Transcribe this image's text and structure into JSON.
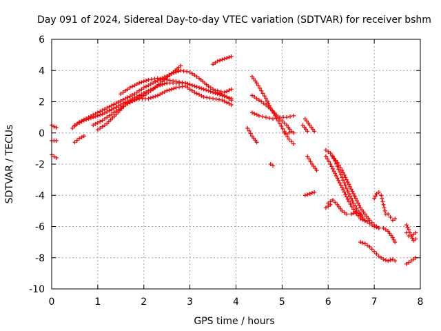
{
  "chart_data": {
    "type": "scatter",
    "title": "Day 091 of 2024, Sidereal Day-to-day VTEC variation (SDTVAR) for receiver bshm",
    "xlabel": "GPS time / hours",
    "ylabel": "SDTVAR / TECUs",
    "xlim": [
      0,
      8
    ],
    "ylim": [
      -10,
      6
    ],
    "xticks": [
      0,
      1,
      2,
      3,
      4,
      5,
      6,
      7,
      8
    ],
    "yticks": [
      -10,
      -8,
      -6,
      -4,
      -2,
      0,
      2,
      4,
      6
    ],
    "grid": true,
    "marker": "+",
    "color": "#ff0000",
    "series": [
      {
        "name": "a0",
        "x": [
          0.0,
          0.05,
          0.1
        ],
        "y": [
          0.5,
          0.4,
          0.35
        ]
      },
      {
        "name": "a1",
        "x": [
          0.0,
          0.05,
          0.1
        ],
        "y": [
          -0.5,
          -0.5,
          -0.5
        ]
      },
      {
        "name": "a2",
        "x": [
          0.0,
          0.05,
          0.1
        ],
        "y": [
          -1.4,
          -1.5,
          -1.6
        ]
      },
      {
        "name": "a3",
        "x": [
          0.5,
          0.6,
          0.7
        ],
        "y": [
          -0.6,
          -0.35,
          -0.2
        ]
      },
      {
        "name": "s1",
        "x": [
          0.45,
          0.6,
          0.8,
          1.0,
          1.2,
          1.4,
          1.6,
          1.8,
          2.0,
          2.2,
          2.4,
          2.6,
          2.8,
          3.0,
          3.2,
          3.4,
          3.6,
          3.8,
          3.9
        ],
        "y": [
          0.3,
          0.7,
          1.0,
          1.3,
          1.6,
          1.9,
          2.2,
          2.5,
          2.9,
          3.2,
          3.5,
          3.8,
          4.0,
          3.9,
          3.5,
          3.0,
          2.6,
          2.3,
          2.1
        ]
      },
      {
        "name": "s2",
        "x": [
          0.5,
          0.7,
          0.9,
          1.1,
          1.3,
          1.5,
          1.7,
          1.9,
          2.1,
          2.3,
          2.5,
          2.7,
          2.9,
          3.1,
          3.3,
          3.5,
          3.7,
          3.9
        ],
        "y": [
          0.5,
          0.8,
          1.0,
          1.2,
          1.5,
          1.8,
          2.1,
          2.4,
          2.7,
          3.0,
          3.2,
          3.2,
          3.2,
          3.0,
          2.8,
          2.6,
          2.4,
          2.2
        ]
      },
      {
        "name": "s3",
        "x": [
          0.9,
          1.1,
          1.3,
          1.5,
          1.7,
          1.9,
          2.1,
          2.3,
          2.5,
          2.7,
          2.9,
          3.1,
          3.3,
          3.5,
          3.7,
          3.9
        ],
        "y": [
          0.5,
          0.8,
          1.2,
          1.6,
          2.0,
          2.2,
          2.2,
          2.4,
          2.7,
          2.9,
          3.0,
          2.6,
          2.3,
          2.2,
          2.1,
          1.8
        ]
      },
      {
        "name": "s4",
        "x": [
          1.0,
          1.2,
          1.4,
          1.6,
          1.8,
          2.0,
          2.2,
          2.4,
          2.6,
          2.8
        ],
        "y": [
          0.2,
          0.6,
          1.2,
          1.8,
          2.1,
          2.4,
          2.8,
          3.3,
          3.8,
          4.3
        ]
      },
      {
        "name": "s5",
        "x": [
          1.5,
          1.7,
          1.9,
          2.1,
          2.3,
          2.5,
          2.7,
          2.9
        ],
        "y": [
          2.5,
          2.9,
          3.2,
          3.4,
          3.5,
          3.4,
          3.3,
          3.2
        ]
      },
      {
        "name": "s6",
        "x": [
          3.5,
          3.6,
          3.7,
          3.8,
          3.9
        ],
        "y": [
          4.4,
          4.6,
          4.7,
          4.8,
          4.9
        ]
      },
      {
        "name": "s7",
        "x": [
          3.6,
          3.75,
          3.9
        ],
        "y": [
          2.7,
          2.6,
          2.8
        ]
      },
      {
        "name": "b1",
        "x": [
          4.35,
          4.45,
          4.55,
          4.65,
          4.75,
          4.85,
          4.95,
          5.05,
          5.15,
          5.25
        ],
        "y": [
          3.6,
          3.2,
          2.7,
          2.2,
          1.6,
          1.1,
          0.6,
          0.1,
          -0.4,
          -0.7
        ]
      },
      {
        "name": "b2",
        "x": [
          4.35,
          4.5,
          4.65,
          4.8,
          4.95,
          5.1,
          5.2
        ],
        "y": [
          2.4,
          2.1,
          1.8,
          1.4,
          0.9,
          0.5,
          0.1
        ]
      },
      {
        "name": "b3",
        "x": [
          4.35,
          4.5,
          4.65,
          4.8,
          4.95,
          5.1,
          5.25
        ],
        "y": [
          1.3,
          1.1,
          1.0,
          0.9,
          1.0,
          1.0,
          1.1
        ]
      },
      {
        "name": "b4",
        "x": [
          4.25,
          4.35,
          4.45
        ],
        "y": [
          0.3,
          -0.2,
          -0.6
        ]
      },
      {
        "name": "b5",
        "x": [
          4.75,
          4.8
        ],
        "y": [
          -2.0,
          -2.1
        ]
      },
      {
        "name": "b6",
        "x": [
          5.05,
          5.15,
          5.25
        ],
        "y": [
          0.0,
          0.0,
          0.0
        ]
      },
      {
        "name": "c1",
        "x": [
          5.5,
          5.6,
          5.7
        ],
        "y": [
          0.9,
          0.5,
          0.1
        ]
      },
      {
        "name": "c2",
        "x": [
          5.45,
          5.55
        ],
        "y": [
          0.5,
          0.1
        ]
      },
      {
        "name": "c3",
        "x": [
          5.5,
          5.6,
          5.7
        ],
        "y": [
          -4.0,
          -3.9,
          -3.8
        ]
      },
      {
        "name": "c4",
        "x": [
          5.55,
          5.65,
          5.75
        ],
        "y": [
          -1.5,
          -2.0,
          -2.4
        ]
      },
      {
        "name": "d1",
        "x": [
          5.95,
          6.05,
          6.15,
          6.25,
          6.35,
          6.45,
          6.55,
          6.65,
          6.75
        ],
        "y": [
          -1.1,
          -1.3,
          -1.8,
          -2.5,
          -3.2,
          -3.9,
          -4.5,
          -5.0,
          -5.4
        ]
      },
      {
        "name": "d2",
        "x": [
          5.95,
          6.05,
          6.15,
          6.25,
          6.35,
          6.45,
          6.55,
          6.65,
          6.8
        ],
        "y": [
          -1.5,
          -2.0,
          -2.6,
          -3.2,
          -3.8,
          -4.4,
          -4.9,
          -5.3,
          -5.6
        ]
      },
      {
        "name": "d3",
        "x": [
          6.1,
          6.2,
          6.3,
          6.4,
          6.5,
          6.6,
          6.7,
          6.8,
          6.9,
          7.0,
          7.1,
          7.2,
          7.3,
          7.4,
          7.45
        ],
        "y": [
          -1.5,
          -1.9,
          -2.4,
          -3.0,
          -3.6,
          -4.2,
          -4.8,
          -5.2,
          -5.6,
          -5.9,
          -6.1,
          -6.1,
          -6.3,
          -6.7,
          -7.0
        ]
      },
      {
        "name": "d4",
        "x": [
          6.0,
          6.1,
          6.2,
          6.3,
          6.4,
          6.5,
          6.6,
          6.7
        ],
        "y": [
          -4.5,
          -4.3,
          -4.6,
          -5.0,
          -5.2,
          -5.2,
          -5.1,
          -5.2
        ]
      },
      {
        "name": "d5",
        "x": [
          6.7,
          6.85,
          7.0,
          7.1,
          7.2
        ],
        "y": [
          -5.5,
          -5.7,
          -6.0,
          -6.1,
          -6.1
        ]
      },
      {
        "name": "d6",
        "x": [
          5.95,
          6.05
        ],
        "y": [
          -4.8,
          -4.6
        ]
      },
      {
        "name": "e1",
        "x": [
          6.7,
          6.8,
          6.9,
          7.0,
          7.1,
          7.2,
          7.3,
          7.4,
          7.45
        ],
        "y": [
          -7.0,
          -7.1,
          -7.3,
          -7.6,
          -7.9,
          -8.1,
          -8.2,
          -8.1,
          -8.2
        ]
      },
      {
        "name": "e2",
        "x": [
          7.0,
          7.05,
          7.1,
          7.15,
          7.2,
          7.25
        ],
        "y": [
          -4.2,
          -3.9,
          -3.8,
          -4.0,
          -4.6,
          -5.2
        ]
      },
      {
        "name": "e3",
        "x": [
          7.3,
          7.35,
          7.4,
          7.45
        ],
        "y": [
          -5.2,
          -5.4,
          -5.6,
          -5.5
        ]
      },
      {
        "name": "f1",
        "x": [
          7.7,
          7.75,
          7.8,
          7.85,
          7.9
        ],
        "y": [
          -5.9,
          -6.2,
          -6.6,
          -6.9,
          -6.8
        ]
      },
      {
        "name": "f2",
        "x": [
          7.7,
          7.75,
          7.8,
          7.85,
          7.9
        ],
        "y": [
          -6.4,
          -6.6,
          -6.6,
          -6.5,
          -6.4
        ]
      },
      {
        "name": "f3",
        "x": [
          7.7,
          7.8,
          7.9
        ],
        "y": [
          -8.4,
          -8.2,
          -8.0
        ]
      }
    ]
  }
}
